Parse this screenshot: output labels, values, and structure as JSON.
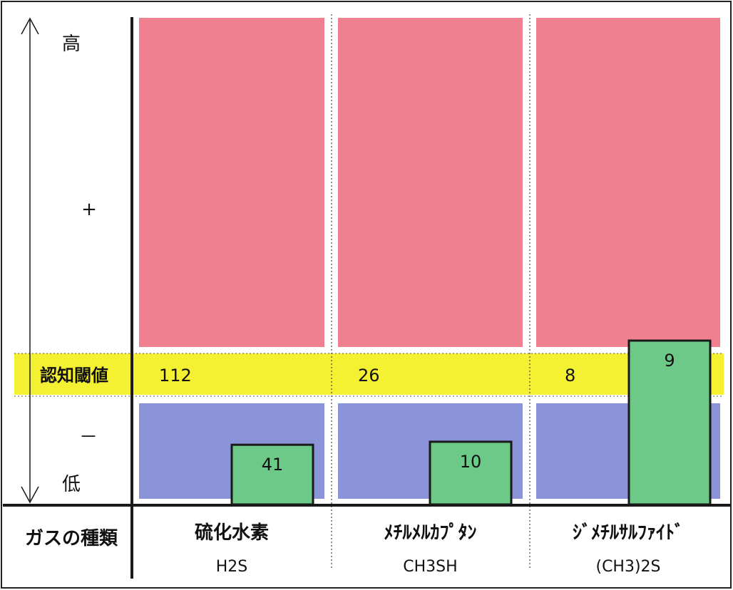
{
  "chart_data": {
    "type": "bar",
    "y_axis": {
      "high_label": "高",
      "plus_label": "+",
      "minus_label": "－",
      "low_label": "低"
    },
    "threshold": {
      "label": "認知閾値",
      "values": [
        112,
        26,
        8
      ]
    },
    "x_axis": {
      "label": "ガスの種類"
    },
    "categories": [
      {
        "name": "硫化水素",
        "formula": "H2S"
      },
      {
        "name": "ﾒﾁﾙﾒﾙｶﾌﾟﾀﾝ",
        "formula": "CH3SH"
      },
      {
        "name": "ｼﾞﾒﾁﾙｻﾙﾌｧｲﾄﾞ",
        "formula": "(CH3)2S"
      }
    ],
    "series": [
      {
        "values": [
          41,
          10,
          9
        ]
      }
    ],
    "colors": {
      "above": "#ee8090",
      "threshold_band": "#f4f032",
      "below": "#8b93d9",
      "bar": "#6cc987",
      "bar_stroke": "#1a1a1a"
    }
  }
}
